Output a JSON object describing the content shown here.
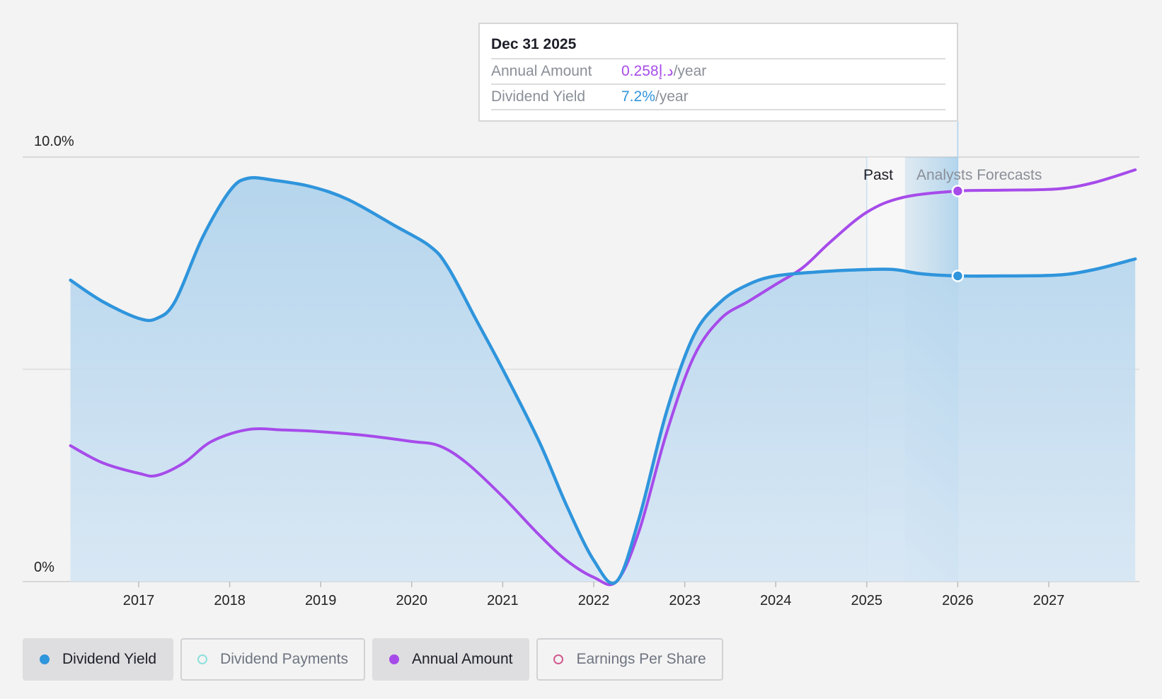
{
  "tooltip": {
    "date": "Dec 31 2025",
    "annual_amount_label": "Annual Amount",
    "annual_amount_value": "0.258د.إ",
    "dividend_yield_label": "Dividend Yield",
    "dividend_yield_value": "7.2%",
    "per_year": "/year"
  },
  "regions": {
    "past_label": "Past",
    "forecast_label": "Analysts Forecasts"
  },
  "legend": [
    {
      "label": "Dividend Yield",
      "color": "#2f95dc",
      "style": "filled",
      "active": true
    },
    {
      "label": "Dividend Payments",
      "color": "#8de0dc",
      "style": "hollow",
      "active": false
    },
    {
      "label": "Annual Amount",
      "color": "#a64bea",
      "style": "filled",
      "active": true
    },
    {
      "label": "Earnings Per Share",
      "color": "#d05a8e",
      "style": "hollow",
      "active": false
    }
  ],
  "colors": {
    "yield": "#2f95dc",
    "amount": "#a64bea",
    "fill": "#bcd9ee"
  },
  "chart_data": {
    "type": "area",
    "y_tick_labels": [
      "10.0%",
      "0%"
    ],
    "ylim": [
      0,
      10
    ],
    "x_tick_labels": [
      "2017",
      "2018",
      "2019",
      "2020",
      "2021",
      "2022",
      "2023",
      "2024",
      "2025",
      "2026",
      "2027"
    ],
    "xlim": [
      2016.2,
      2027.95
    ],
    "grid": true,
    "past_forecast_divider": 2025.42,
    "highlight": {
      "x": 2026.0,
      "yield": 7.2,
      "amount_scaled": 9.2
    },
    "series": [
      {
        "name": "Dividend Yield",
        "unit": "%",
        "points": [
          [
            2016.25,
            7.1
          ],
          [
            2016.6,
            6.6
          ],
          [
            2017.0,
            6.2
          ],
          [
            2017.2,
            6.2
          ],
          [
            2017.4,
            6.6
          ],
          [
            2017.7,
            8.1
          ],
          [
            2018.0,
            9.2
          ],
          [
            2018.2,
            9.5
          ],
          [
            2018.5,
            9.45
          ],
          [
            2018.9,
            9.3
          ],
          [
            2019.3,
            9.0
          ],
          [
            2019.8,
            8.4
          ],
          [
            2020.2,
            7.9
          ],
          [
            2020.4,
            7.4
          ],
          [
            2020.7,
            6.2
          ],
          [
            2021.0,
            5.0
          ],
          [
            2021.4,
            3.3
          ],
          [
            2021.7,
            1.8
          ],
          [
            2022.0,
            0.5
          ],
          [
            2022.25,
            0.0
          ],
          [
            2022.5,
            1.5
          ],
          [
            2022.8,
            4.0
          ],
          [
            2023.1,
            5.8
          ],
          [
            2023.4,
            6.6
          ],
          [
            2023.7,
            7.0
          ],
          [
            2024.0,
            7.2
          ],
          [
            2024.5,
            7.3
          ],
          [
            2025.0,
            7.35
          ],
          [
            2025.3,
            7.35
          ],
          [
            2025.6,
            7.25
          ],
          [
            2026.0,
            7.2
          ],
          [
            2026.5,
            7.2
          ],
          [
            2027.1,
            7.22
          ],
          [
            2027.5,
            7.35
          ],
          [
            2027.95,
            7.6
          ]
        ]
      },
      {
        "name": "Annual Amount",
        "points": [
          [
            2016.25,
            3.2
          ],
          [
            2016.6,
            2.8
          ],
          [
            2017.0,
            2.55
          ],
          [
            2017.2,
            2.5
          ],
          [
            2017.5,
            2.8
          ],
          [
            2017.8,
            3.3
          ],
          [
            2018.2,
            3.58
          ],
          [
            2018.6,
            3.57
          ],
          [
            2019.0,
            3.53
          ],
          [
            2019.5,
            3.44
          ],
          [
            2020.0,
            3.3
          ],
          [
            2020.3,
            3.2
          ],
          [
            2020.6,
            2.8
          ],
          [
            2021.0,
            2.0
          ],
          [
            2021.4,
            1.1
          ],
          [
            2021.7,
            0.5
          ],
          [
            2022.0,
            0.1
          ],
          [
            2022.25,
            0.0
          ],
          [
            2022.5,
            1.2
          ],
          [
            2022.8,
            3.5
          ],
          [
            2023.1,
            5.3
          ],
          [
            2023.4,
            6.2
          ],
          [
            2023.7,
            6.6
          ],
          [
            2024.0,
            7.0
          ],
          [
            2024.3,
            7.4
          ],
          [
            2024.6,
            8.0
          ],
          [
            2025.0,
            8.7
          ],
          [
            2025.4,
            9.05
          ],
          [
            2026.0,
            9.2
          ],
          [
            2026.5,
            9.22
          ],
          [
            2027.1,
            9.25
          ],
          [
            2027.5,
            9.4
          ],
          [
            2027.95,
            9.7
          ]
        ]
      }
    ]
  }
}
